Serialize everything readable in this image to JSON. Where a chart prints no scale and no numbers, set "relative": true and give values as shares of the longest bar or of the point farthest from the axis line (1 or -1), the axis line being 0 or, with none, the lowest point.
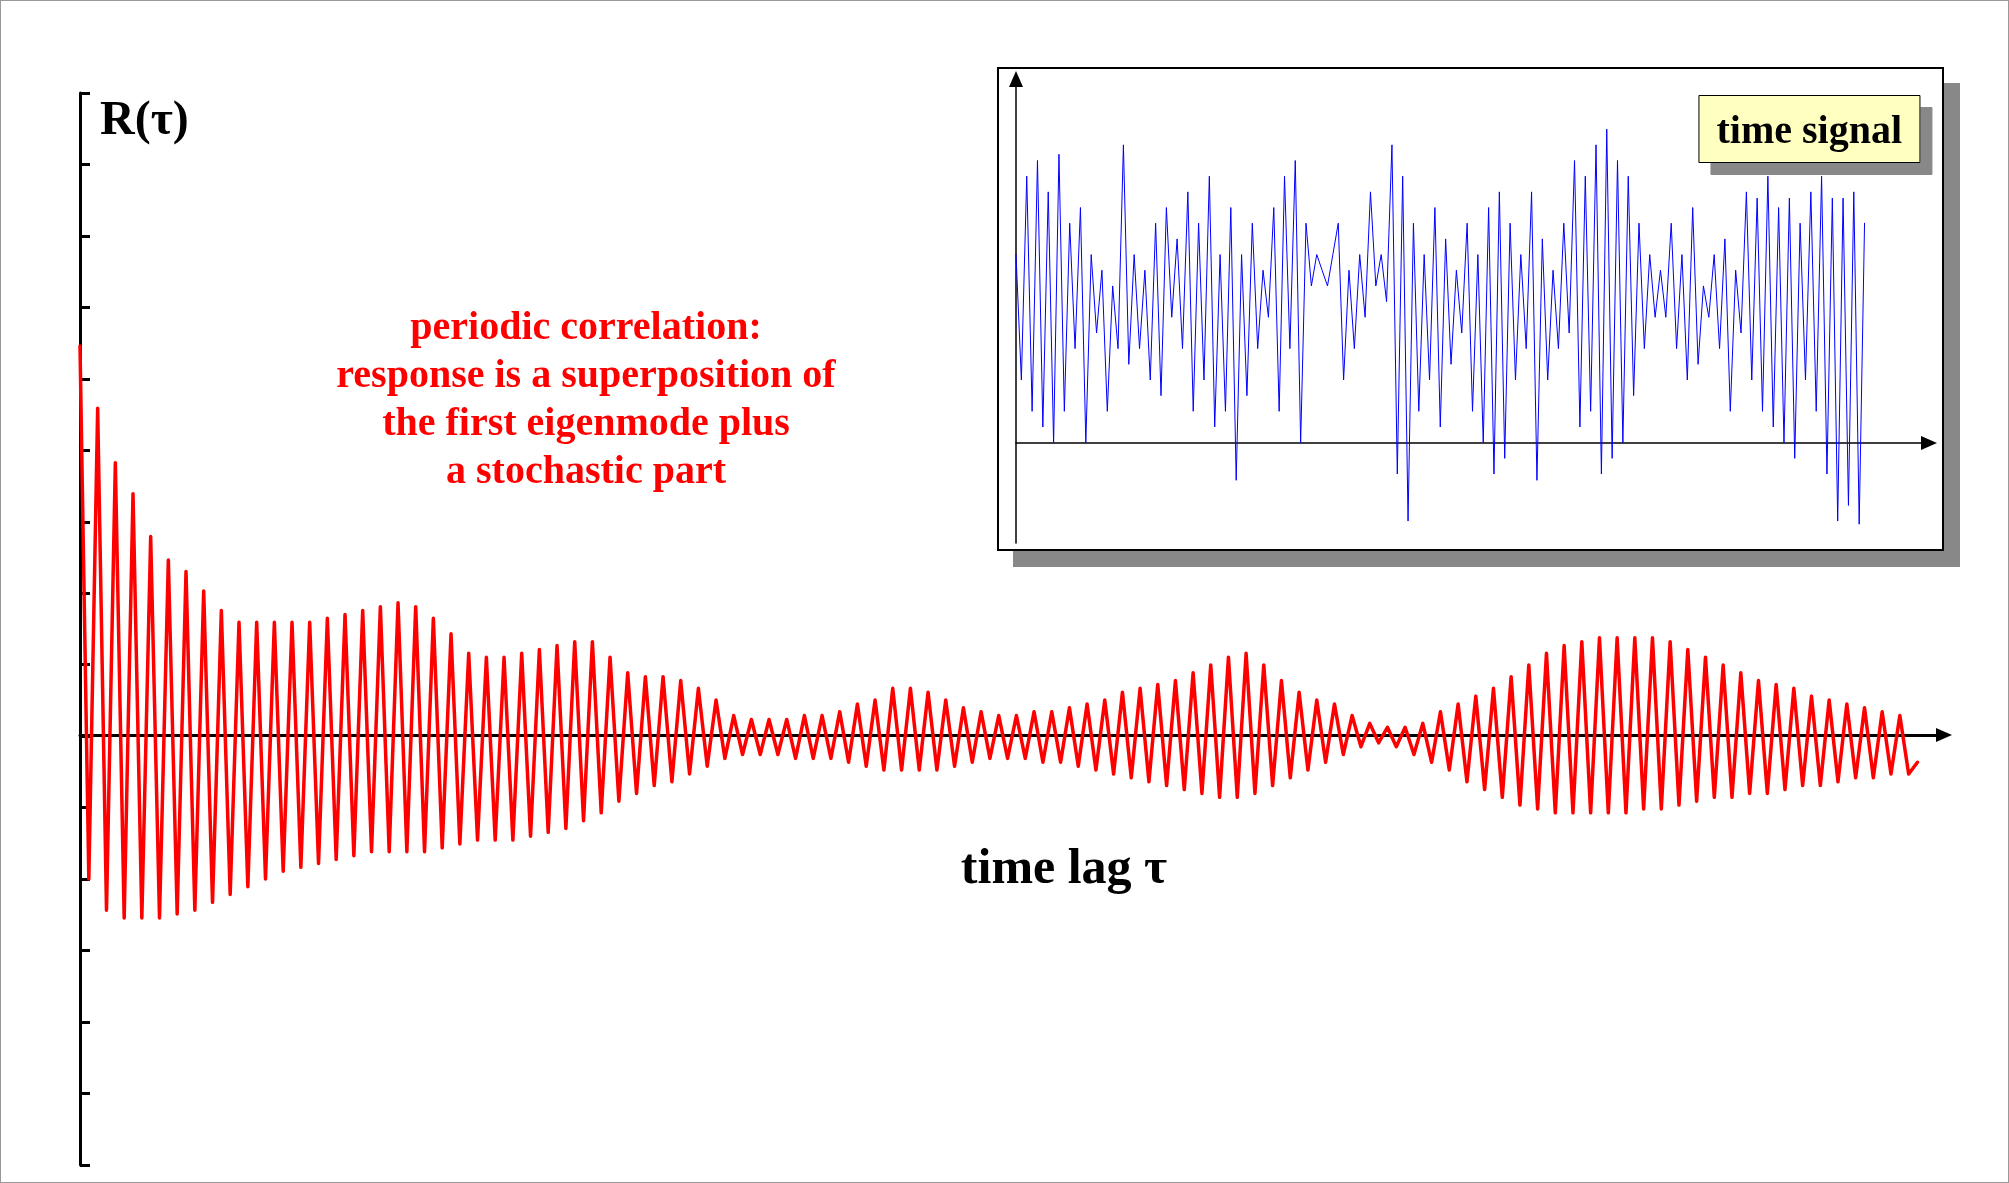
{
  "chart_data": [
    {
      "type": "line",
      "relative": true,
      "xlabel": "time lag τ",
      "ylabel": "R(τ)",
      "annotations": [
        "periodic correlation:\nresponse is a superposition of\nthe first eigenmode plus\na stochastic part"
      ],
      "tick_labels": false,
      "categories": [
        null,
        null,
        null,
        null,
        null,
        null,
        null,
        null,
        null,
        null,
        null,
        null,
        null,
        null,
        null,
        null,
        null,
        null,
        null,
        null,
        null,
        null,
        null,
        null,
        null,
        null,
        null,
        null,
        null,
        null,
        null,
        null,
        null,
        null,
        null,
        null,
        null,
        null,
        null,
        null,
        null,
        null,
        null,
        null,
        null,
        null,
        null,
        null,
        null,
        null,
        null,
        null,
        null,
        null,
        null,
        null,
        null,
        null,
        null,
        null,
        null,
        null,
        null,
        null,
        null,
        null,
        null,
        null,
        null,
        null,
        null,
        null,
        null,
        null,
        null,
        null,
        null,
        null,
        null,
        null,
        null,
        null,
        null,
        null,
        null,
        null,
        null,
        null,
        null,
        null,
        null,
        null,
        null,
        null,
        null,
        null,
        null,
        null,
        null,
        null,
        null,
        null,
        null,
        null,
        null,
        null,
        null,
        null,
        null,
        null,
        null,
        null,
        null,
        null,
        null,
        null,
        null,
        null,
        null,
        null,
        null,
        null,
        null,
        null,
        null,
        null,
        null,
        null,
        null,
        null,
        null,
        null,
        null,
        null,
        null,
        null,
        null,
        null,
        null,
        null,
        null,
        null,
        null,
        null,
        null,
        null,
        null,
        null,
        null,
        null,
        null,
        null,
        null,
        null,
        null,
        null,
        null,
        null,
        null,
        null,
        null,
        null,
        null,
        null,
        null,
        null,
        null,
        null,
        null,
        null,
        null,
        null,
        null,
        null,
        null,
        null,
        null,
        null,
        null,
        null,
        null,
        null,
        null,
        null,
        null,
        null,
        null,
        null,
        null,
        null,
        null,
        null,
        null,
        null,
        null,
        null,
        null,
        null,
        null,
        null,
        null,
        null,
        null,
        null,
        null,
        null,
        null,
        null,
        null,
        null,
        null,
        null
      ],
      "series": [
        {
          "color": "#ff0000",
          "values": [
            1,
            -0.37,
            0.84,
            -0.45,
            0.7,
            -0.47,
            0.62,
            -0.47,
            0.51,
            -0.47,
            0.45,
            -0.46,
            0.42,
            -0.45,
            0.37,
            -0.43,
            0.32,
            -0.41,
            0.29,
            -0.39,
            0.29,
            -0.37,
            0.29,
            -0.35,
            0.29,
            -0.34,
            0.29,
            -0.33,
            0.3,
            -0.32,
            0.31,
            -0.31,
            0.32,
            -0.3,
            0.33,
            -0.3,
            0.34,
            -0.3,
            0.33,
            -0.3,
            0.3,
            -0.29,
            0.26,
            -0.28,
            0.21,
            -0.27,
            0.2,
            -0.27,
            0.2,
            -0.27,
            0.21,
            -0.26,
            0.22,
            -0.25,
            0.23,
            -0.24,
            0.24,
            -0.22,
            0.24,
            -0.2,
            0.2,
            -0.17,
            0.16,
            -0.15,
            0.15,
            -0.13,
            0.15,
            -0.12,
            0.14,
            -0.1,
            0.12,
            -0.08,
            0.09,
            -0.06,
            0.05,
            -0.05,
            0.04,
            -0.05,
            0.04,
            -0.05,
            0.04,
            -0.06,
            0.05,
            -0.06,
            0.05,
            -0.06,
            0.06,
            -0.07,
            0.08,
            -0.08,
            0.09,
            -0.09,
            0.12,
            -0.09,
            0.12,
            -0.09,
            0.11,
            -0.09,
            0.09,
            -0.08,
            0.07,
            -0.07,
            0.06,
            -0.06,
            0.05,
            -0.06,
            0.05,
            -0.06,
            0.06,
            -0.07,
            0.06,
            -0.07,
            0.07,
            -0.08,
            0.08,
            -0.09,
            0.09,
            -0.1,
            0.11,
            -0.11,
            0.12,
            -0.12,
            0.13,
            -0.13,
            0.14,
            -0.14,
            0.16,
            -0.15,
            0.18,
            -0.16,
            0.2,
            -0.16,
            0.21,
            -0.15,
            0.18,
            -0.13,
            0.14,
            -0.11,
            0.11,
            -0.09,
            0.09,
            -0.07,
            0.08,
            -0.05,
            0.05,
            -0.03,
            0.03,
            -0.02,
            0.02,
            -0.03,
            0.02,
            -0.05,
            0.03,
            -0.07,
            0.06,
            -0.09,
            0.08,
            -0.12,
            0.1,
            -0.14,
            0.12,
            -0.16,
            0.15,
            -0.18,
            0.18,
            -0.19,
            0.21,
            -0.2,
            0.23,
            -0.2,
            0.24,
            -0.2,
            0.25,
            -0.2,
            0.25,
            -0.2,
            0.25,
            -0.19,
            0.25,
            -0.19,
            0.24,
            -0.18,
            0.22,
            -0.17,
            0.2,
            -0.16,
            0.18,
            -0.16,
            0.16,
            -0.15,
            0.14,
            -0.15,
            0.13,
            -0.14,
            0.12,
            -0.13,
            0.1,
            -0.13,
            0.09,
            -0.12,
            0.08,
            -0.11,
            0.07,
            -0.11,
            0.06,
            -0.1,
            0.05,
            -0.1,
            -0.07,
            null,
            null,
            null
          ]
        }
      ]
    },
    {
      "type": "line",
      "relative": true,
      "title": "time signal",
      "tick_labels": false,
      "categories": [
        null,
        null,
        null,
        null,
        null,
        null,
        null,
        null,
        null,
        null,
        null,
        null,
        null,
        null,
        null,
        null,
        null,
        null,
        null,
        null,
        null,
        null,
        null,
        null,
        null,
        null,
        null,
        null,
        null,
        null,
        null,
        null,
        null,
        null,
        null,
        null,
        null,
        null,
        null,
        null,
        null,
        null,
        null,
        null,
        null,
        null,
        null,
        null,
        null,
        null,
        null,
        null,
        null,
        null,
        null,
        null,
        null,
        null,
        null,
        null,
        null,
        null,
        null,
        null,
        null,
        null,
        null,
        null,
        null,
        null,
        null,
        null,
        null,
        null,
        null,
        null,
        null,
        null,
        null,
        null,
        null,
        null,
        null,
        null,
        null,
        null,
        null,
        null,
        null,
        null,
        null,
        null,
        null,
        null,
        null,
        null,
        null,
        null,
        null,
        null,
        null,
        null,
        null,
        null,
        null,
        null,
        null,
        null,
        null,
        null,
        null,
        null,
        null,
        null,
        null,
        null,
        null,
        null,
        null,
        null,
        null,
        null,
        null,
        null,
        null,
        null,
        null,
        null,
        null,
        null,
        null,
        null,
        null,
        null,
        null,
        null,
        null,
        null,
        null,
        null,
        null,
        null,
        null,
        null,
        null,
        null,
        null,
        null,
        null,
        null,
        null,
        null,
        null,
        null,
        null,
        null,
        null,
        null,
        null,
        null,
        null,
        null,
        null,
        null,
        null,
        null,
        null,
        null,
        null,
        null,
        null
      ],
      "series": [
        {
          "color": "#0000ff",
          "values": [
            0.6,
            0.2,
            0.85,
            0.1,
            0.9,
            0.05,
            0.8,
            0.0,
            0.92,
            0.1,
            0.7,
            0.3,
            0.75,
            0.0,
            0.6,
            0.35,
            0.55,
            0.1,
            0.5,
            0.3,
            0.95,
            0.25,
            0.6,
            0.3,
            0.55,
            0.2,
            0.7,
            0.15,
            0.75,
            0.4,
            0.65,
            0.3,
            0.8,
            0.1,
            0.7,
            0.2,
            0.85,
            0.05,
            0.6,
            0.1,
            0.75,
            -0.12,
            0.6,
            0.15,
            0.7,
            0.3,
            0.55,
            0.4,
            0.75,
            0.1,
            0.85,
            0.3,
            0.9,
            0.0,
            0.7,
            0.5,
            0.6,
            0.55,
            0.5,
            0.6,
            0.7,
            0.2,
            0.55,
            0.3,
            0.6,
            0.4,
            0.8,
            0.5,
            0.6,
            0.45,
            0.95,
            -0.1,
            0.85,
            -0.25,
            0.7,
            0.1,
            0.6,
            0.2,
            0.75,
            0.05,
            0.65,
            0.25,
            0.55,
            0.35,
            0.7,
            0.1,
            0.6,
            0.0,
            0.75,
            -0.1,
            0.8,
            -0.05,
            0.7,
            0.2,
            0.6,
            0.3,
            0.8,
            -0.12,
            0.65,
            0.2,
            0.55,
            0.3,
            0.7,
            0.35,
            0.9,
            0.05,
            0.85,
            0.1,
            0.95,
            -0.1,
            1.0,
            -0.05,
            0.9,
            0.0,
            0.85,
            0.15,
            0.7,
            0.3,
            0.6,
            0.4,
            0.55,
            0.4,
            0.7,
            0.3,
            0.6,
            0.2,
            0.75,
            0.25,
            0.5,
            0.4,
            0.6,
            0.3,
            0.65,
            0.1,
            0.55,
            0.35,
            0.8,
            0.2,
            0.78,
            0.1,
            0.85,
            0.05,
            0.75,
            0.0,
            0.78,
            -0.05,
            0.7,
            0.2,
            0.8,
            0.1,
            0.85,
            -0.1,
            0.78,
            -0.25,
            0.78,
            -0.2,
            0.8,
            -0.26,
            0.7,
            null,
            null,
            null,
            null,
            null,
            null,
            null,
            null,
            null,
            null,
            null,
            null
          ]
        }
      ]
    }
  ]
}
